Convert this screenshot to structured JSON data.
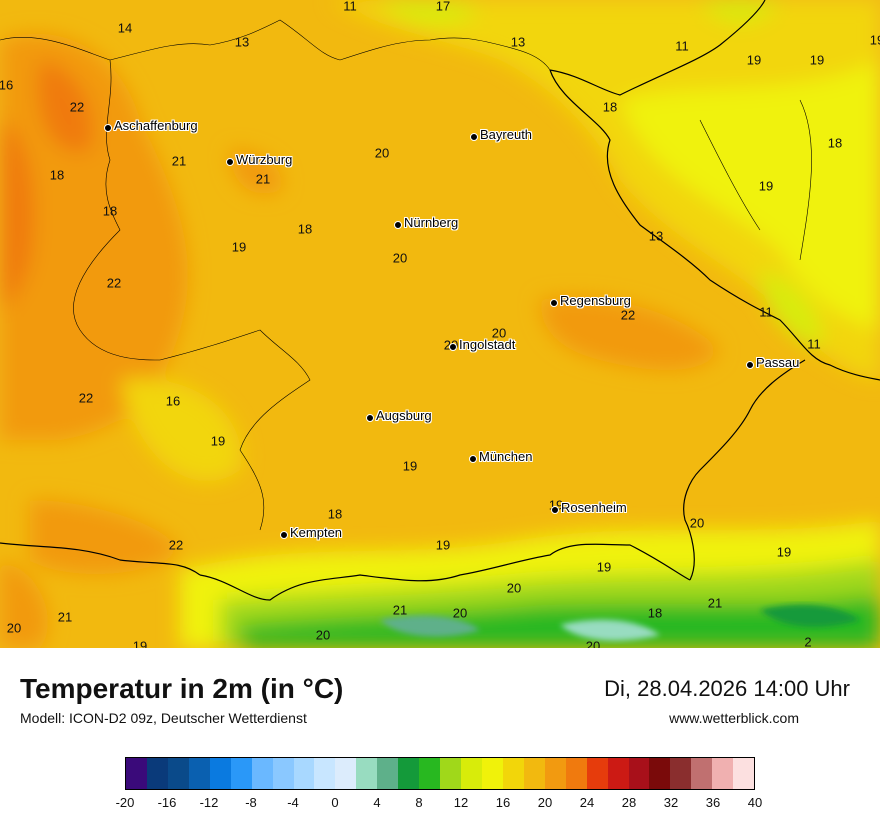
{
  "map": {
    "cities": [
      {
        "name": "Aschaffenburg",
        "icon": "city-dot-icon"
      },
      {
        "name": "Würzburg",
        "icon": "city-dot-icon"
      },
      {
        "name": "Bayreuth",
        "icon": "city-dot-icon"
      },
      {
        "name": "Nürnberg",
        "icon": "city-dot-icon"
      },
      {
        "name": "Regensburg",
        "icon": "city-dot-icon"
      },
      {
        "name": "Ingolstadt",
        "icon": "city-dot-icon"
      },
      {
        "name": "Passau",
        "icon": "city-dot-icon"
      },
      {
        "name": "Augsburg",
        "icon": "city-dot-icon"
      },
      {
        "name": "München",
        "icon": "city-dot-icon"
      },
      {
        "name": "Rosenheim",
        "icon": "city-dot-icon"
      },
      {
        "name": "Kempten",
        "icon": "city-dot-icon"
      }
    ],
    "temperature_labels": [
      "14",
      "11",
      "17",
      "13",
      "13",
      "11",
      "19",
      "19",
      "19",
      "16",
      "22",
      "18",
      "20",
      "21",
      "21",
      "18",
      "18",
      "18",
      "19",
      "13",
      "19",
      "18",
      "22",
      "20",
      "22",
      "20",
      "20",
      "11",
      "11",
      "22",
      "16",
      "19",
      "19",
      "19",
      "18",
      "19",
      "22",
      "19",
      "20",
      "19",
      "20",
      "20",
      "21",
      "21",
      "20",
      "19",
      "20",
      "18",
      "21",
      "2",
      "20"
    ]
  },
  "footer": {
    "title": "Temperatur in 2m (in °C)",
    "model": "Modell: ICON-D2 09z, Deutscher Wetterdienst",
    "datetime": "Di, 28.04.2026 14:00 Uhr",
    "website": "www.wetterblick.com"
  },
  "colorscale": {
    "colors": [
      "#3a0a7a",
      "#0a3a7a",
      "#0a4a8a",
      "#0a60b0",
      "#0a7ae0",
      "#2a98f8",
      "#6ab8ff",
      "#8ac8ff",
      "#a8d8ff",
      "#c8e6ff",
      "#dcecfc",
      "#98dcc0",
      "#5eb08a",
      "#149a3a",
      "#28b820",
      "#a0d81a",
      "#d8ec0a",
      "#f0f20a",
      "#f2d60a",
      "#f2b90f",
      "#f29a10",
      "#f07a0e",
      "#e63c0c",
      "#cc1a14",
      "#a8101a",
      "#7a0a0a",
      "#8a2e2e",
      "#c07070",
      "#f0b0b0",
      "#fce0e0"
    ],
    "ticks": [
      "-20",
      "-16",
      "-12",
      "-8",
      "-4",
      "0",
      "4",
      "8",
      "12",
      "16",
      "20",
      "24",
      "28",
      "32",
      "36",
      "40"
    ]
  }
}
